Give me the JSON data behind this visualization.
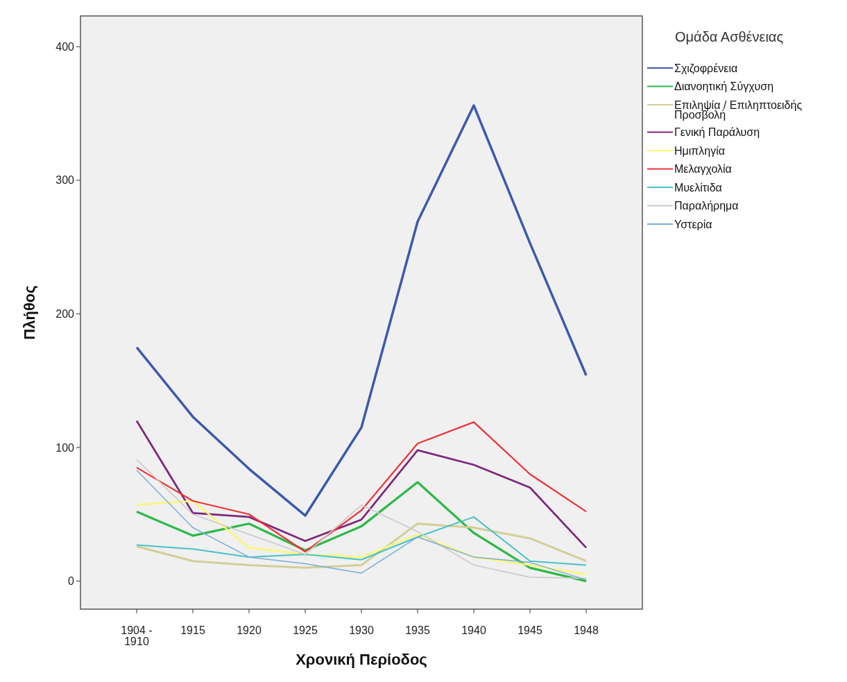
{
  "chart_data": {
    "type": "line",
    "xlabel": "Χρονική Περίοδος",
    "ylabel": "Πλήθος",
    "legend_title": "Ομάδα Ασθένειας",
    "legend": "right",
    "grid": false,
    "categories": [
      "1904 - 1910",
      "1915",
      "1920",
      "1925",
      "1930",
      "1935",
      "1940",
      "1945",
      "1948"
    ],
    "ylim": [
      -21,
      423
    ],
    "yticks": [
      0,
      100,
      200,
      300,
      400
    ],
    "series": [
      {
        "name": "Σχιζοφρένεια",
        "color": "#3e58ac",
        "values": [
          175,
          123,
          84,
          49,
          115,
          269,
          356,
          253,
          154
        ]
      },
      {
        "name": "Διανοητική Σύγχυση",
        "color": "#2eb848",
        "values": [
          52,
          34,
          43,
          23,
          41,
          74,
          36,
          10,
          0
        ]
      },
      {
        "name": "Επιληψία / Επιληπτοειδής Προσβολή",
        "color": "#d3ce97",
        "values": [
          26,
          15,
          12,
          10,
          12,
          43,
          40,
          32,
          15
        ]
      },
      {
        "name": "Γενική Παράλυση",
        "color": "#7c287d",
        "values": [
          120,
          51,
          48,
          30,
          46,
          98,
          87,
          70,
          25
        ]
      },
      {
        "name": "Ημιπληγία",
        "color": "#fbf873",
        "values": [
          57,
          60,
          25,
          20,
          18,
          35,
          18,
          12,
          5
        ]
      },
      {
        "name": "Μελαγχολία",
        "color": "#ef3338",
        "values": [
          85,
          60,
          50,
          22,
          53,
          103,
          119,
          80,
          52
        ]
      },
      {
        "name": "Μυελίτιδα",
        "color": "#48c2c5",
        "values": [
          27,
          24,
          18,
          20,
          16,
          33,
          48,
          15,
          12
        ]
      },
      {
        "name": "Παραλήρημα",
        "color": "#cccccc",
        "values": [
          91,
          50,
          35,
          20,
          57,
          37,
          12,
          3,
          2
        ]
      },
      {
        "name": "Υστερία",
        "color": "#7aaad5",
        "values": [
          83,
          40,
          18,
          13,
          6,
          33,
          18,
          14,
          1
        ]
      }
    ]
  }
}
